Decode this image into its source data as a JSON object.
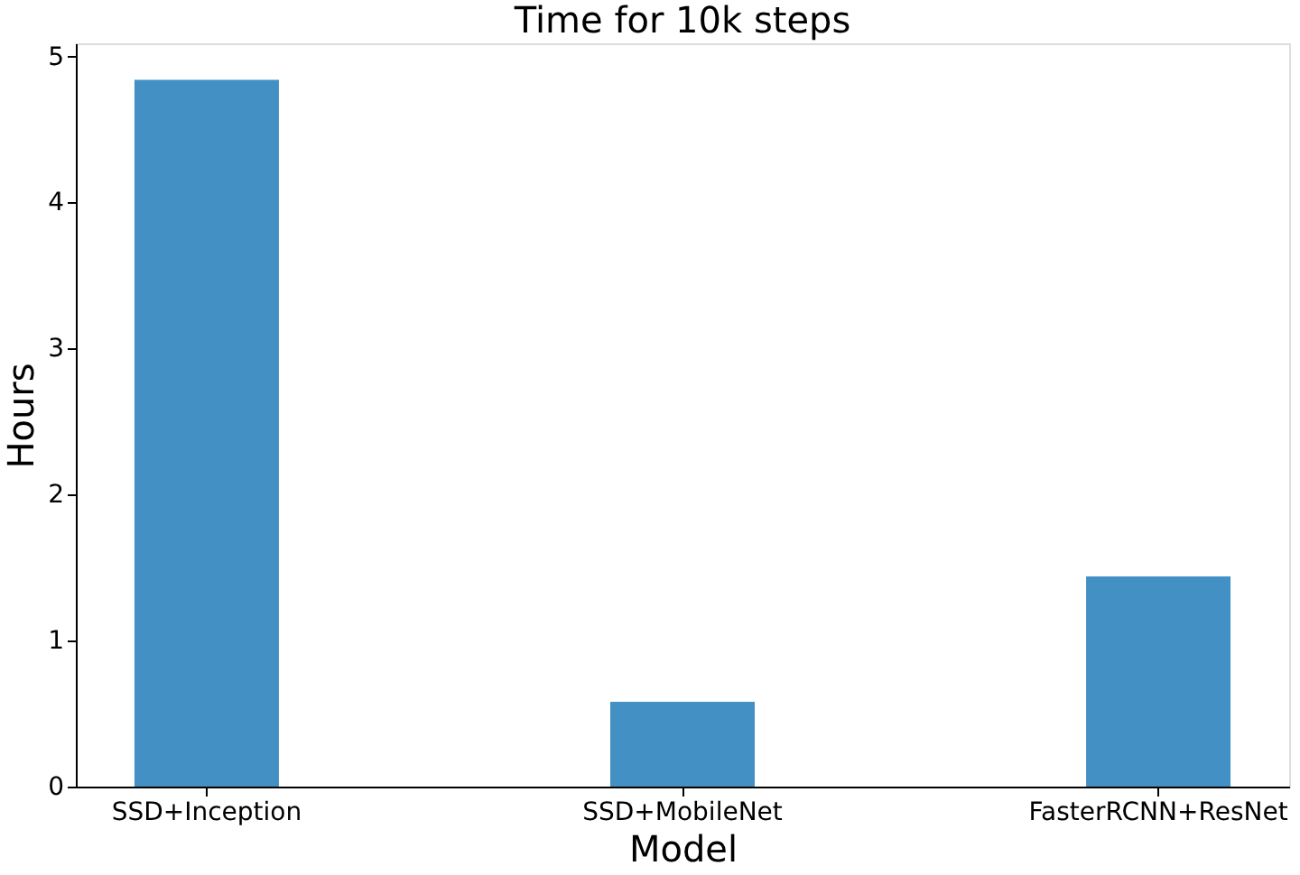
{
  "chart_data": {
    "type": "bar",
    "title": "Time for 10k steps",
    "xlabel": "Model",
    "ylabel": "Hours",
    "categories": [
      "SSD+Inception",
      "SSD+MobileNet",
      "FasterRCNN+ResNet"
    ],
    "values": [
      4.84,
      0.58,
      1.44
    ],
    "color": "#4391c4",
    "ylim": [
      0,
      5.09
    ],
    "yticks": [
      0,
      1,
      2,
      3,
      4,
      5
    ],
    "grid": false
  }
}
